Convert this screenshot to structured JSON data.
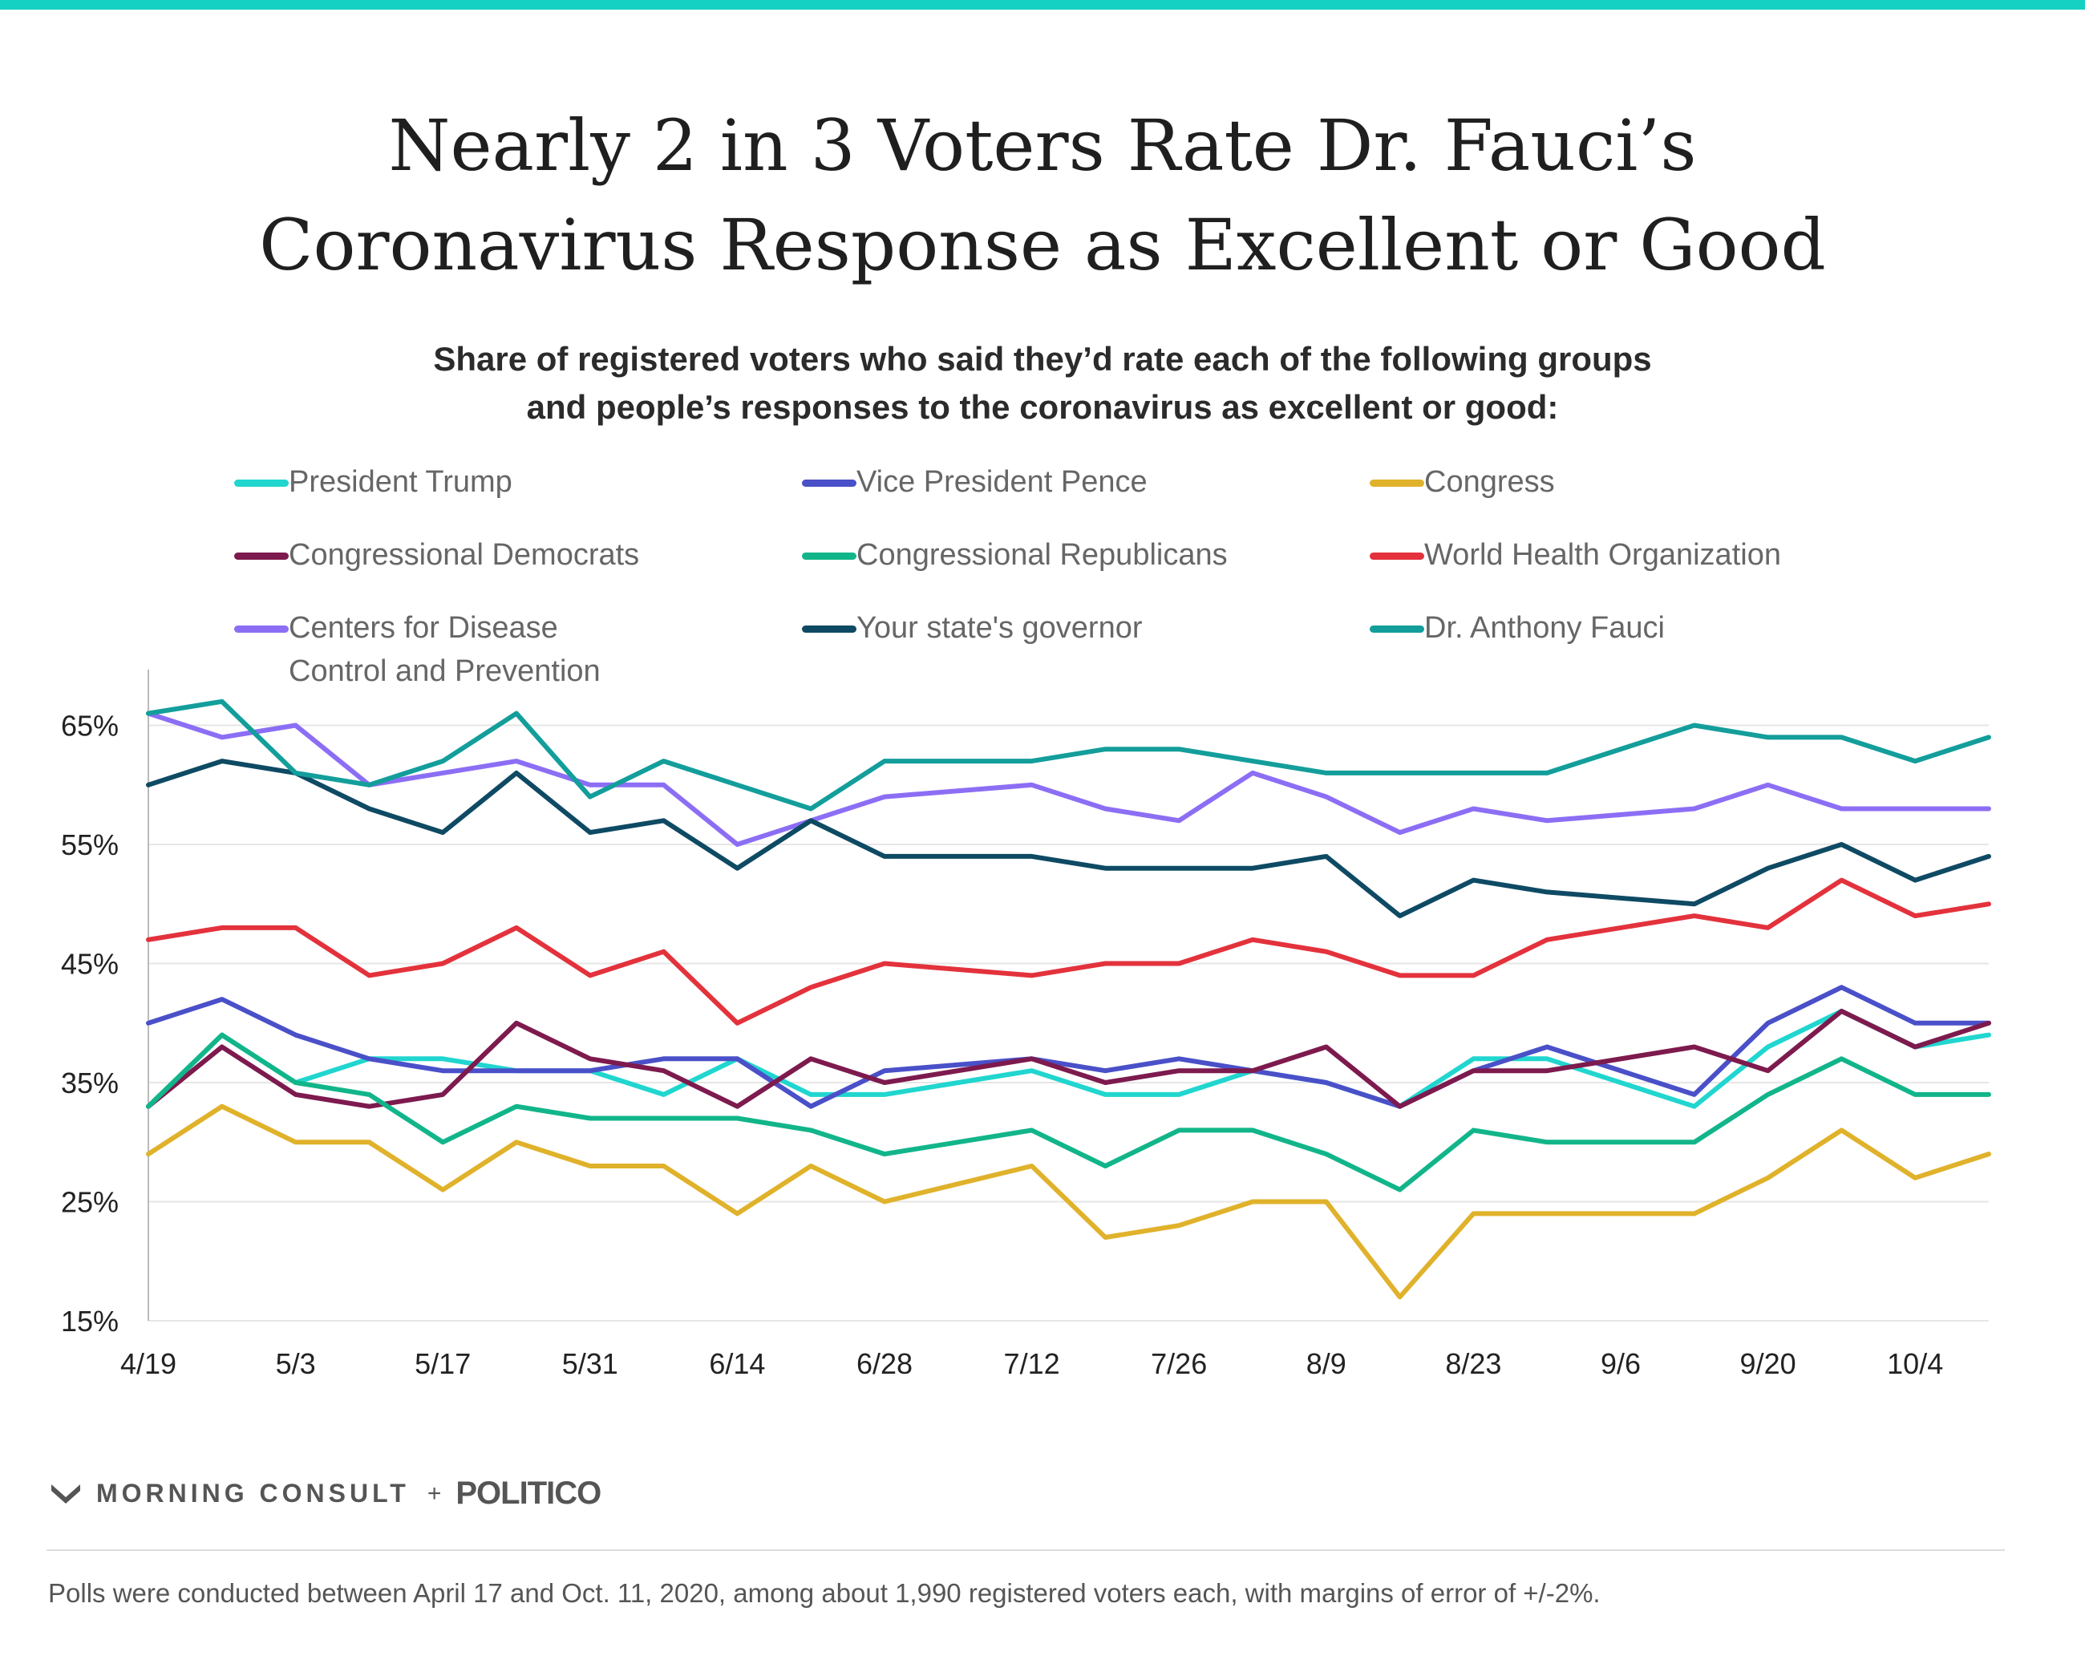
{
  "title_line1": "Nearly 2 in 3 Voters Rate Dr. Fauci’s",
  "title_line2": "Coronavirus Response as Excellent or Good",
  "subtitle_line1": "Share of registered voters who said they’d rate each of the following groups",
  "subtitle_line2": "and people’s responses to the coronavirus as excellent or good:",
  "legend": [
    {
      "label": "President Trump",
      "color": "#20d6cf"
    },
    {
      "label": "Vice President Pence",
      "color": "#4a50c8"
    },
    {
      "label": "Congress",
      "color": "#e0b22b"
    },
    {
      "label": "Congressional Democrats",
      "color": "#7d1a4e"
    },
    {
      "label": "Congressional Republicans",
      "color": "#12b58a"
    },
    {
      "label": "World Health Organization",
      "color": "#e3323c"
    },
    {
      "label": "Centers for Disease Control and Prevention",
      "color": "#8c6ef5"
    },
    {
      "label": "Your state's governor",
      "color": "#0e4a63"
    },
    {
      "label": "Dr. Anthony Fauci",
      "color": "#139e9b"
    }
  ],
  "chart_data": {
    "type": "line",
    "x": [
      "4/19",
      "4/26",
      "5/3",
      "5/10",
      "5/17",
      "5/24",
      "5/31",
      "6/7",
      "6/14",
      "6/21",
      "6/28",
      "7/12",
      "7/19",
      "7/26",
      "8/2",
      "8/9",
      "8/16",
      "8/23",
      "8/30",
      "9/13",
      "9/20",
      "9/27",
      "10/4",
      "10/11"
    ],
    "x_dates": [
      "4/19",
      "4/26",
      "5/3",
      "5/10",
      "5/17",
      "5/24",
      "5/31",
      "6/7",
      "6/14",
      "6/21",
      "6/28",
      "7/12",
      "7/19",
      "7/26",
      "8/2",
      "8/9",
      "8/16",
      "8/23",
      "8/30",
      "9/13",
      "9/20",
      "9/27",
      "10/4",
      "10/11"
    ],
    "xticks": [
      "4/19",
      "5/3",
      "5/17",
      "5/31",
      "6/14",
      "6/28",
      "7/12",
      "7/26",
      "8/9",
      "8/23",
      "9/6",
      "9/20",
      "10/4"
    ],
    "yticks": [
      "15%",
      "25%",
      "35%",
      "45%",
      "55%",
      "65%"
    ],
    "ylim": [
      15,
      69
    ],
    "grid": true,
    "series": [
      {
        "name": "President Trump",
        "color": "#20d6cf",
        "values": [
          33,
          39,
          35,
          37,
          37,
          36,
          36,
          34,
          37,
          34,
          34,
          36,
          34,
          34,
          36,
          35,
          33,
          37,
          37,
          33,
          38,
          41,
          38,
          39
        ]
      },
      {
        "name": "Vice President Pence",
        "color": "#4a50c8",
        "values": [
          40,
          42,
          39,
          37,
          36,
          36,
          36,
          37,
          37,
          33,
          36,
          37,
          36,
          37,
          36,
          35,
          33,
          36,
          38,
          34,
          40,
          43,
          40,
          40
        ]
      },
      {
        "name": "Congress",
        "color": "#e0b22b",
        "values": [
          29,
          33,
          30,
          30,
          26,
          30,
          28,
          28,
          24,
          28,
          25,
          28,
          22,
          23,
          25,
          25,
          17,
          24,
          24,
          24,
          27,
          31,
          27,
          29
        ]
      },
      {
        "name": "Congressional Democrats",
        "color": "#7d1a4e",
        "values": [
          33,
          38,
          34,
          33,
          34,
          40,
          37,
          36,
          33,
          37,
          35,
          37,
          35,
          36,
          36,
          38,
          33,
          36,
          36,
          38,
          36,
          41,
          38,
          40
        ]
      },
      {
        "name": "Congressional Republicans",
        "color": "#12b58a",
        "values": [
          33,
          39,
          35,
          34,
          30,
          33,
          32,
          32,
          32,
          31,
          29,
          31,
          28,
          31,
          31,
          29,
          26,
          31,
          30,
          30,
          34,
          37,
          34,
          34
        ]
      },
      {
        "name": "World Health Organization",
        "color": "#e3323c",
        "values": [
          47,
          48,
          48,
          44,
          45,
          48,
          44,
          46,
          40,
          43,
          45,
          44,
          45,
          45,
          47,
          46,
          44,
          44,
          47,
          49,
          48,
          52,
          49,
          50
        ]
      },
      {
        "name": "Centers for Disease Control and Prevention",
        "color": "#8c6ef5",
        "values": [
          66,
          64,
          65,
          60,
          61,
          62,
          60,
          60,
          55,
          57,
          59,
          60,
          58,
          57,
          61,
          59,
          56,
          58,
          57,
          58,
          60,
          58,
          58,
          58
        ]
      },
      {
        "name": "Your state's governor",
        "color": "#0e4a63",
        "values": [
          60,
          62,
          61,
          58,
          56,
          61,
          56,
          57,
          53,
          57,
          54,
          54,
          53,
          53,
          53,
          54,
          49,
          52,
          51,
          50,
          53,
          55,
          52,
          54
        ]
      },
      {
        "name": "Dr. Anthony Fauci",
        "color": "#139e9b",
        "values": [
          66,
          67,
          61,
          60,
          62,
          66,
          59,
          62,
          60,
          58,
          62,
          62,
          63,
          63,
          62,
          61,
          61,
          61,
          61,
          65,
          64,
          64,
          62,
          64
        ]
      }
    ]
  },
  "brand": {
    "morning_consult": "MORNING CONSULT",
    "plus": "+",
    "politico": "POLITICO"
  },
  "footnote": "Polls were conducted between April 17 and Oct. 11, 2020, among about 1,990 registered voters each, with margins of error of +/-2%."
}
